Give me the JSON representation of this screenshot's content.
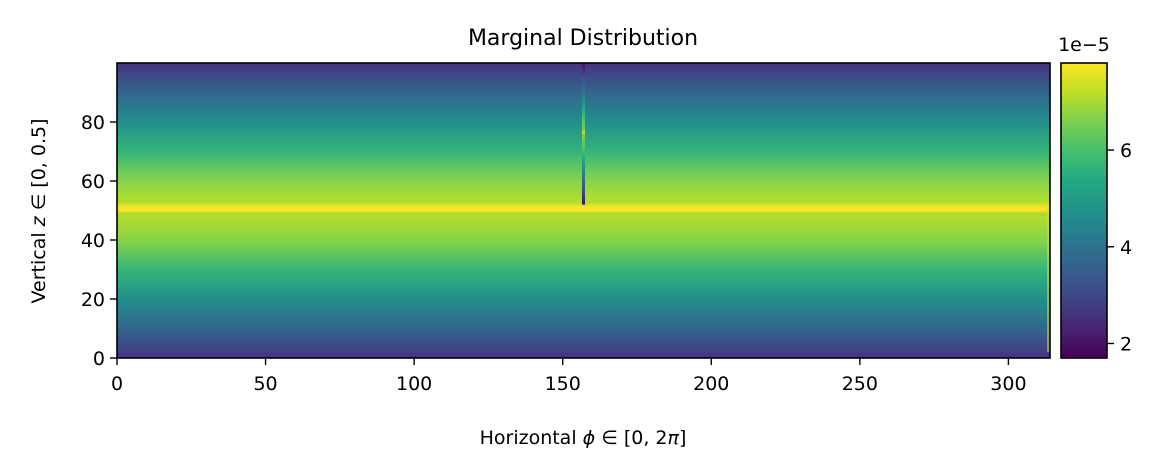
{
  "chart_data": {
    "type": "heatmap",
    "title": "Marginal Distribution",
    "xlabel": {
      "prefix": "Horizontal ",
      "var": "ϕ",
      "suffix": " ∈ [0, 2",
      "pi": "π",
      "close": "]"
    },
    "ylabel": {
      "prefix": "Vertical ",
      "var": "z",
      "suffix": " ∈ [0, 0.5]"
    },
    "xlim": [
      0,
      314
    ],
    "ylim": [
      0,
      100
    ],
    "xticks": [
      0,
      50,
      100,
      150,
      200,
      250,
      300
    ],
    "yticks": [
      0,
      20,
      40,
      60,
      80
    ],
    "colormap": "viridis",
    "grid": false,
    "colorbar": {
      "range": [
        1.7,
        7.8
      ],
      "ticks": [
        2,
        4,
        6
      ],
      "offset_label": "1e−5"
    },
    "profile_z": [
      0,
      10,
      20,
      30,
      40,
      48,
      49,
      50,
      51,
      52,
      53,
      60,
      70,
      80,
      90,
      100
    ],
    "profile_value": [
      2.6,
      3.7,
      4.7,
      5.7,
      6.7,
      7.1,
      7.0,
      7.75,
      7.75,
      7.4,
      7.1,
      6.7,
      5.7,
      4.7,
      3.7,
      2.6
    ],
    "vertical_line": {
      "x": 157,
      "z_from": 52,
      "z_to": 100,
      "value_delta": -0.6
    },
    "features": {
      "right_edge_column_x": 313,
      "right_edge_value": 7.3
    }
  }
}
